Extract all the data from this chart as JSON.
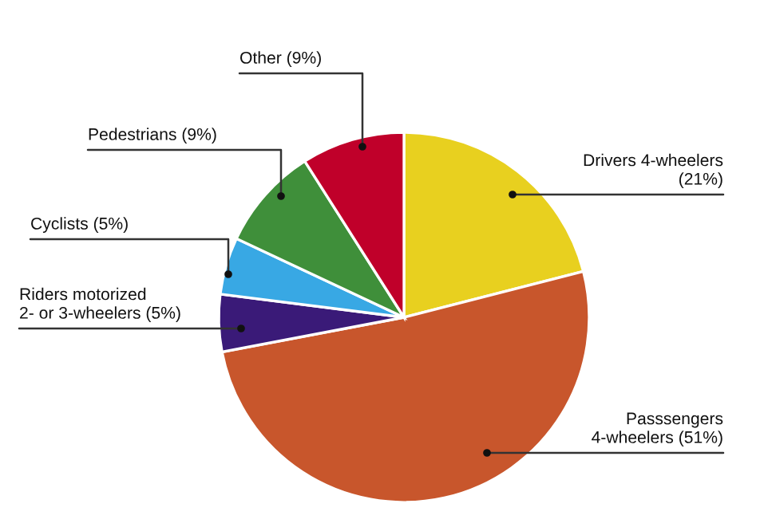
{
  "chart_data": {
    "type": "pie",
    "categories": [
      "Drivers 4-wheelers",
      "Passsengers\n4-wheelers",
      "Riders motorized\n2- or 3-wheelers",
      "Cyclists",
      "Pedestrians",
      "Other"
    ],
    "values": [
      21,
      51,
      5,
      5,
      9,
      9
    ],
    "value_labels": [
      "(21%)",
      "(51%)",
      "(5%)",
      "(5%)",
      "(9%)",
      "(9%)"
    ],
    "colors": [
      "#e8d01f",
      "#c8562c",
      "#3a1a78",
      "#38a8e4",
      "#3f8f3a",
      "#c0002a"
    ],
    "legend": false
  }
}
